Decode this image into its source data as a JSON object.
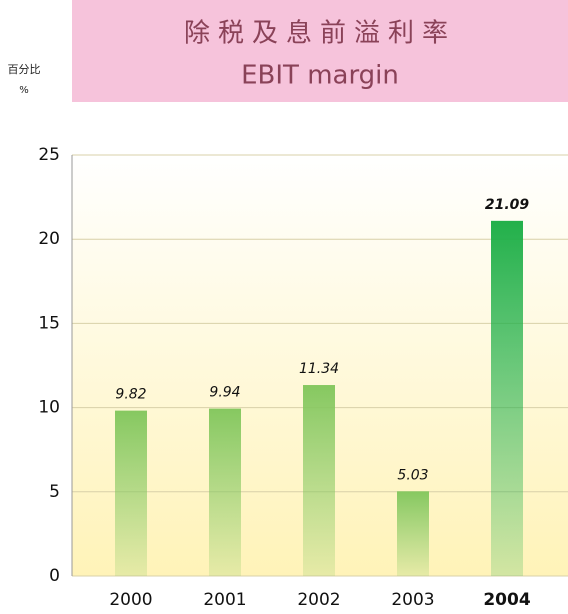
{
  "chart_data": {
    "type": "bar",
    "title": "除税及息前溢利率",
    "subtitle": "EBIT margin",
    "y_label": "百分比",
    "y_unit": "%",
    "categories": [
      "2000",
      "2001",
      "2002",
      "2003",
      "2004"
    ],
    "values": [
      9.82,
      9.94,
      11.34,
      5.03,
      21.09
    ],
    "colors": [
      "#86c860",
      "#86c860",
      "#86c860",
      "#86c860",
      "#22b04a"
    ],
    "highlight_category": "2004",
    "ylim": [
      0,
      25
    ],
    "yticks": [
      0,
      5,
      10,
      15,
      20,
      25
    ],
    "grid": true
  }
}
